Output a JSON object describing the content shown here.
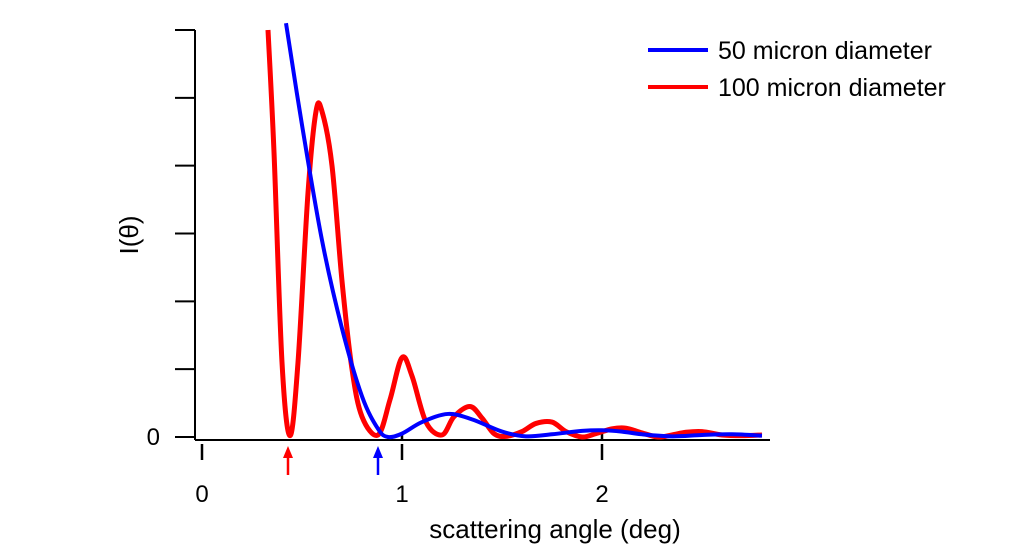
{
  "chart_data": {
    "type": "line",
    "title": "",
    "xlabel": "scattering angle (deg)",
    "ylabel": "I(θ)",
    "xlim": [
      -0.05,
      2.8
    ],
    "ylim": [
      0,
      6
    ],
    "x_ticks": [
      0,
      1,
      2
    ],
    "x_tick_labels": [
      "0",
      "1",
      "2"
    ],
    "y_tick_labels": [
      "0"
    ],
    "grid": false,
    "legend_position": "top-right",
    "series": [
      {
        "name": "50 micron diameter",
        "color": "#0000ff",
        "x": [
          0.42,
          0.5,
          0.6,
          0.7,
          0.8,
          0.88,
          0.93,
          1.0,
          1.1,
          1.23,
          1.35,
          1.5,
          1.62,
          1.75,
          1.9,
          2.0,
          2.1,
          2.2,
          2.35,
          2.5,
          2.65,
          2.8
        ],
        "y": [
          6.1,
          4.6,
          2.9,
          1.6,
          0.6,
          0.12,
          0.0,
          0.05,
          0.22,
          0.34,
          0.26,
          0.08,
          0.01,
          0.04,
          0.09,
          0.1,
          0.08,
          0.04,
          0.01,
          0.03,
          0.04,
          0.02
        ]
      },
      {
        "name": "100 micron diameter",
        "color": "#ff0000",
        "x": [
          0.33,
          0.36,
          0.4,
          0.44,
          0.48,
          0.53,
          0.57,
          0.6,
          0.65,
          0.7,
          0.75,
          0.8,
          0.88,
          0.94,
          1.0,
          1.05,
          1.12,
          1.2,
          1.26,
          1.34,
          1.4,
          1.46,
          1.52,
          1.6,
          1.67,
          1.75,
          1.82,
          1.9,
          1.97,
          2.05,
          2.12,
          2.2,
          2.28,
          2.35,
          2.42,
          2.5,
          2.6,
          2.7,
          2.8
        ],
        "y": [
          6.0,
          4.2,
          1.1,
          0.02,
          1.1,
          3.6,
          4.8,
          4.8,
          4.0,
          2.3,
          1.0,
          0.3,
          0.03,
          0.55,
          1.17,
          0.9,
          0.22,
          0.03,
          0.3,
          0.45,
          0.28,
          0.05,
          0.01,
          0.08,
          0.2,
          0.22,
          0.08,
          0.0,
          0.05,
          0.12,
          0.13,
          0.06,
          0.0,
          0.03,
          0.07,
          0.08,
          0.03,
          0.02,
          0.03
        ]
      }
    ],
    "markers": [
      {
        "x": 0.43,
        "color": "#ff0000"
      },
      {
        "x": 0.88,
        "color": "#0000ff"
      }
    ]
  }
}
